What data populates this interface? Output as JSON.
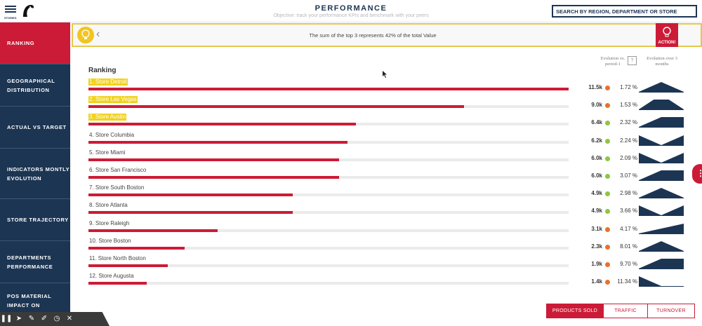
{
  "header": {
    "menu_label": "STORIES",
    "title": "PERFORMANCE",
    "subtitle": "Objective: track your performance KPIs and benchmark with your peers",
    "search_label": "SEARCH BY REGION, DEPARTMENT OR STORE"
  },
  "sidebar": {
    "items": [
      {
        "label": "RANKING",
        "active": true
      },
      {
        "label": "GEOGRAPHICAL DISTRIBUTION",
        "active": false
      },
      {
        "label": "ACTUAL VS TARGET",
        "active": false
      },
      {
        "label": "INDICATORS MONTLY EVOLUTION",
        "active": false
      },
      {
        "label": "STORE TRAJECTORY",
        "active": false
      },
      {
        "label": "DEPARTMENTS PERFORMANCE",
        "active": false
      },
      {
        "label": "POS MATERIAL IMPACT ON",
        "active": false
      }
    ]
  },
  "info_bar": {
    "text": "The sum of the top 3 represents 42% of the total Value",
    "action_label": "ACTION!"
  },
  "columns": {
    "evolution_prev": "Evolution vs. period-1",
    "evolution_3m": "Evolution over 3 months",
    "help": "?"
  },
  "ranking": {
    "title": "Ranking",
    "max_value": 11.5,
    "colors": {
      "bar": "#cc1b36",
      "up": "#8dc63f",
      "down": "#e8712c",
      "spark": "#1c3553",
      "highlight": "#f2d21f"
    },
    "rows": [
      {
        "label": "1. Store Detroit",
        "value": 11.5,
        "display": "11.5k",
        "pct": "1.72 %",
        "trend": "down",
        "highlight": true,
        "spark": [
          0,
          1,
          0
        ]
      },
      {
        "label": "2. Store Las Vegas",
        "value": 9.0,
        "display": "9.0k",
        "pct": "1.53 %",
        "trend": "down",
        "highlight": true,
        "spark": [
          0,
          1,
          1,
          0
        ]
      },
      {
        "label": "3. Store Austin",
        "value": 6.4,
        "display": "6.4k",
        "pct": "2.32 %",
        "trend": "up",
        "highlight": true,
        "spark": [
          0,
          1,
          1
        ]
      },
      {
        "label": "4. Store Columbia",
        "value": 6.2,
        "display": "6.2k",
        "pct": "2.24 %",
        "trend": "up",
        "highlight": false,
        "spark": [
          1,
          0,
          1
        ]
      },
      {
        "label": "5. Store Miami",
        "value": 6.0,
        "display": "6.0k",
        "pct": "2.09 %",
        "trend": "up",
        "highlight": false,
        "spark": [
          1,
          0,
          1
        ]
      },
      {
        "label": "6. Store San Francisco",
        "value": 6.0,
        "display": "6.0k",
        "pct": "3.07 %",
        "trend": "up",
        "highlight": false,
        "spark": [
          0,
          1,
          1
        ]
      },
      {
        "label": "7. Store South Boston",
        "value": 4.9,
        "display": "4.9k",
        "pct": "2.98 %",
        "trend": "up",
        "highlight": false,
        "spark": [
          0,
          1,
          0
        ]
      },
      {
        "label": "8. Store Atlanta",
        "value": 4.9,
        "display": "4.9k",
        "pct": "3.66 %",
        "trend": "up",
        "highlight": false,
        "spark": [
          1,
          0,
          1
        ]
      },
      {
        "label": "9. Store Raleigh",
        "value": 3.1,
        "display": "3.1k",
        "pct": "4.17 %",
        "trend": "down",
        "highlight": false,
        "spark": [
          0,
          0.5,
          1
        ]
      },
      {
        "label": "10. Store Boston",
        "value": 2.3,
        "display": "2.3k",
        "pct": "8.01 %",
        "trend": "down",
        "highlight": false,
        "spark": [
          0,
          1,
          0
        ]
      },
      {
        "label": "11. Store North Boston",
        "value": 1.9,
        "display": "1.9k",
        "pct": "9.70 %",
        "trend": "down",
        "highlight": false,
        "spark": [
          0,
          1,
          1
        ]
      },
      {
        "label": "12. Store Augusta",
        "value": 1.4,
        "display": "1.4k",
        "pct": "11.34 %",
        "trend": "down",
        "highlight": false,
        "spark": [
          1,
          0,
          0
        ]
      }
    ]
  },
  "tabs": [
    {
      "label": "PRODUCTS SOLD",
      "active": true
    },
    {
      "label": "TRAFFIC",
      "active": false
    },
    {
      "label": "TURNOVER",
      "active": false
    }
  ],
  "more_label": "⋮",
  "toolbar": {
    "icons": [
      "pause-icon",
      "pointer-icon",
      "pen-icon",
      "highlighter-icon",
      "timer-icon",
      "close-icon"
    ]
  }
}
